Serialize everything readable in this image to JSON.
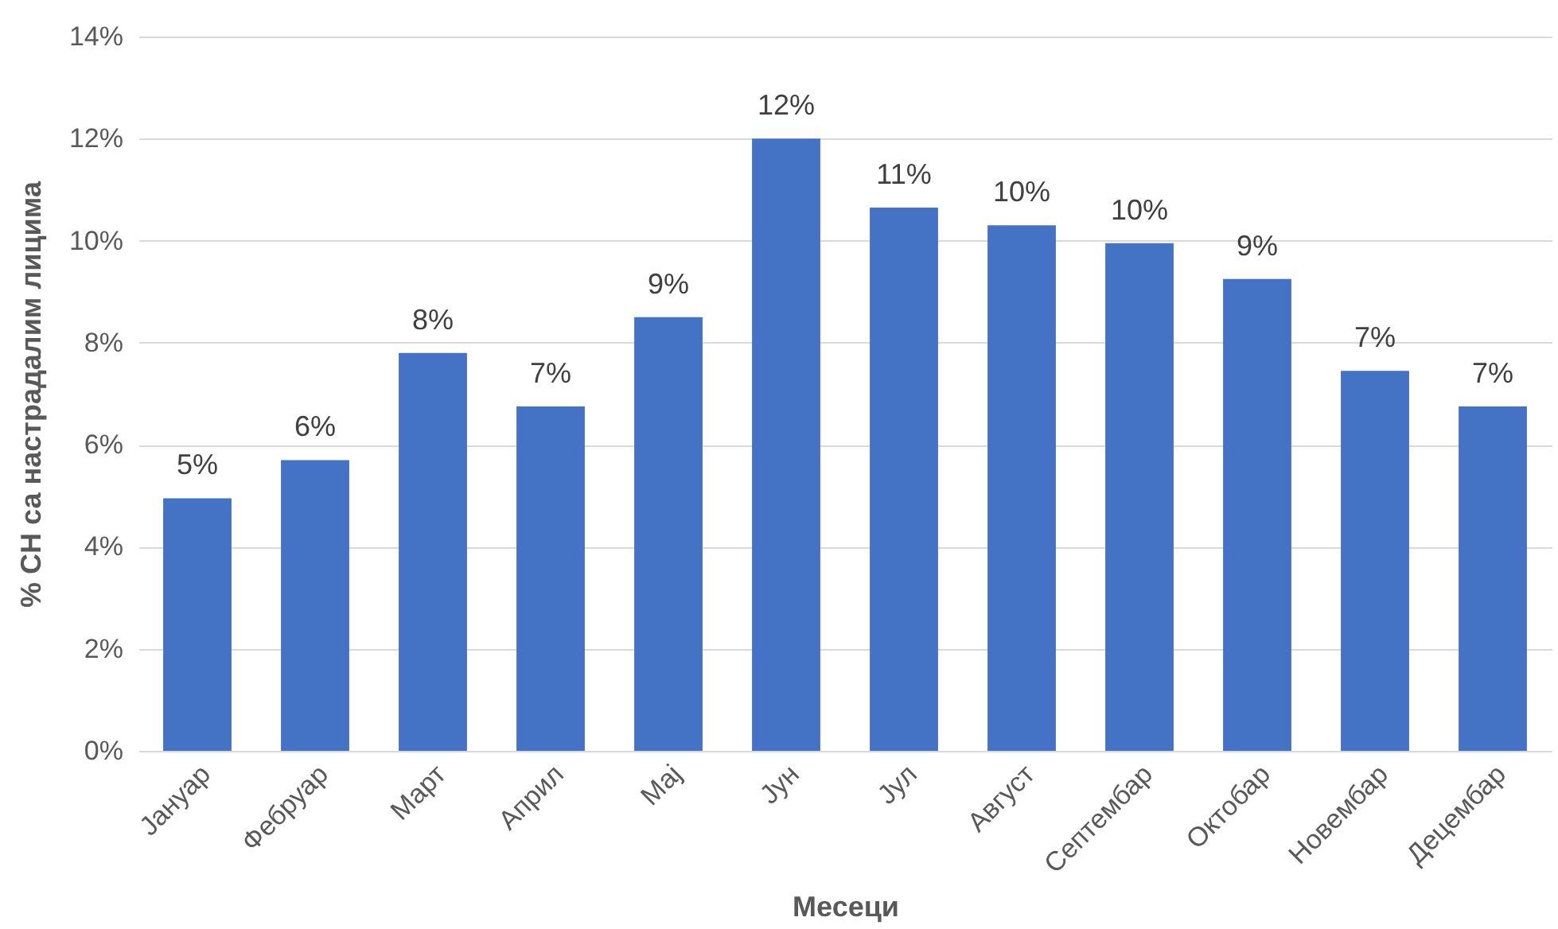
{
  "chart_data": {
    "type": "bar",
    "xlabel": "Месеци",
    "ylabel": "% СН са настрадалим лицима",
    "categories": [
      "Јануар",
      "Фебруар",
      "Март",
      "Април",
      "Мај",
      "Јун",
      "Јул",
      "Август",
      "Септембар",
      "Октобар",
      "Новембар",
      "Децембар"
    ],
    "values": [
      4.95,
      5.7,
      7.8,
      6.75,
      8.5,
      12.0,
      10.65,
      10.3,
      9.95,
      9.25,
      7.45,
      6.75
    ],
    "value_labels": [
      "5%",
      "6%",
      "8%",
      "7%",
      "9%",
      "12%",
      "11%",
      "10%",
      "10%",
      "9%",
      "7%",
      "7%"
    ],
    "color": "#4472c4",
    "ylim": [
      0,
      14
    ],
    "yticks": [
      {
        "value": 0,
        "label": "0%"
      },
      {
        "value": 2,
        "label": "2%"
      },
      {
        "value": 4,
        "label": "4%"
      },
      {
        "value": 6,
        "label": "6%"
      },
      {
        "value": 8,
        "label": "8%"
      },
      {
        "value": 10,
        "label": "10%"
      },
      {
        "value": 12,
        "label": "12%"
      },
      {
        "value": 14,
        "label": "14%"
      }
    ],
    "grid": "y"
  }
}
